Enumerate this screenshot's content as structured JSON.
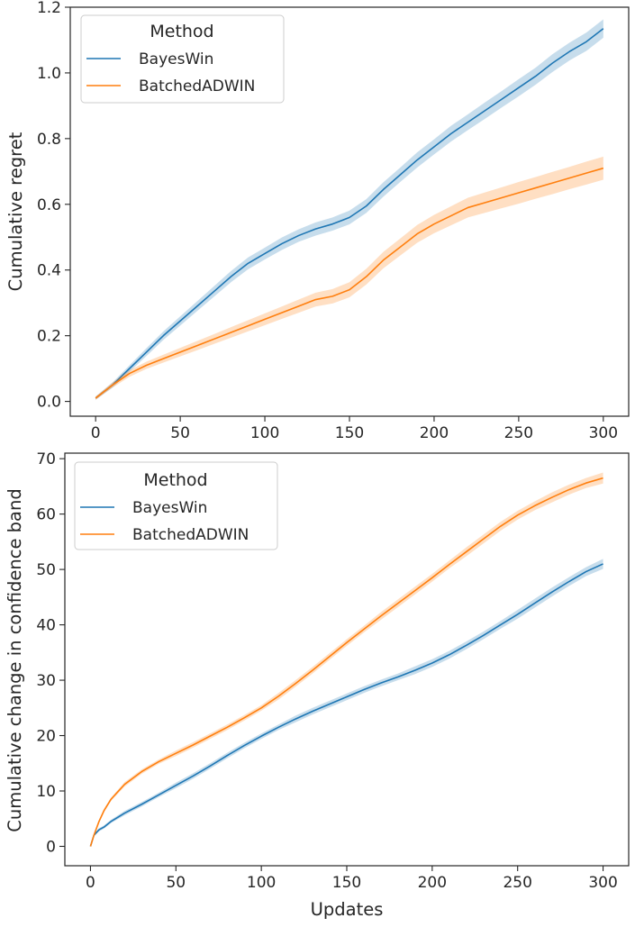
{
  "chart_data": [
    {
      "type": "line",
      "title": "",
      "xlabel": "",
      "ylabel": "Cumulative regret",
      "xlim": [
        -15,
        315
      ],
      "ylim": [
        -0.045,
        1.2
      ],
      "xticks": [
        0,
        50,
        100,
        150,
        200,
        250,
        300
      ],
      "xtick_labels": [
        "0",
        "50",
        "100",
        "150",
        "200",
        "250",
        "300"
      ],
      "yticks": [
        0.0,
        0.2,
        0.4,
        0.6,
        0.8,
        1.0,
        1.2
      ],
      "ytick_labels": [
        "0.0",
        "0.2",
        "0.4",
        "0.6",
        "0.8",
        "1.0",
        "1.2"
      ],
      "grid": false,
      "legend": {
        "title": "Method",
        "position": "top-left"
      },
      "series": [
        {
          "name": "BayesWin",
          "color": "#1f77b4",
          "x": [
            0,
            10,
            20,
            30,
            40,
            50,
            60,
            70,
            80,
            90,
            100,
            110,
            120,
            130,
            140,
            150,
            160,
            170,
            180,
            190,
            200,
            210,
            220,
            230,
            240,
            250,
            260,
            270,
            280,
            290,
            300
          ],
          "y": [
            0.01,
            0.05,
            0.1,
            0.15,
            0.2,
            0.245,
            0.29,
            0.335,
            0.38,
            0.42,
            0.45,
            0.48,
            0.505,
            0.525,
            0.54,
            0.56,
            0.595,
            0.645,
            0.69,
            0.735,
            0.775,
            0.815,
            0.85,
            0.885,
            0.92,
            0.955,
            0.99,
            1.03,
            1.065,
            1.095,
            1.135
          ],
          "band": [
            0.005,
            0.008,
            0.01,
            0.012,
            0.013,
            0.014,
            0.015,
            0.016,
            0.017,
            0.018,
            0.018,
            0.019,
            0.019,
            0.02,
            0.02,
            0.021,
            0.021,
            0.022,
            0.022,
            0.023,
            0.023,
            0.024,
            0.024,
            0.025,
            0.025,
            0.026,
            0.026,
            0.027,
            0.027,
            0.028,
            0.028
          ]
        },
        {
          "name": "BatchedADWIN",
          "color": "#ff7f0e",
          "x": [
            0,
            10,
            20,
            30,
            40,
            50,
            60,
            70,
            80,
            90,
            100,
            110,
            120,
            130,
            140,
            150,
            160,
            170,
            180,
            190,
            200,
            210,
            220,
            230,
            240,
            250,
            260,
            270,
            280,
            290,
            300
          ],
          "y": [
            0.01,
            0.05,
            0.085,
            0.11,
            0.13,
            0.15,
            0.17,
            0.19,
            0.21,
            0.23,
            0.25,
            0.27,
            0.29,
            0.31,
            0.32,
            0.34,
            0.38,
            0.43,
            0.47,
            0.51,
            0.54,
            0.565,
            0.59,
            0.605,
            0.62,
            0.635,
            0.65,
            0.665,
            0.68,
            0.695,
            0.71
          ],
          "band": [
            0.005,
            0.008,
            0.01,
            0.011,
            0.012,
            0.013,
            0.014,
            0.015,
            0.016,
            0.017,
            0.018,
            0.019,
            0.02,
            0.021,
            0.022,
            0.023,
            0.024,
            0.025,
            0.026,
            0.027,
            0.028,
            0.029,
            0.03,
            0.031,
            0.032,
            0.033,
            0.033,
            0.034,
            0.034,
            0.035,
            0.035
          ]
        }
      ]
    },
    {
      "type": "line",
      "title": "",
      "xlabel": "Updates",
      "ylabel": "Cumulative change in confidence band",
      "xlim": [
        -15,
        315
      ],
      "ylim": [
        -3.5,
        71
      ],
      "xticks": [
        0,
        50,
        100,
        150,
        200,
        250,
        300
      ],
      "xtick_labels": [
        "0",
        "50",
        "100",
        "150",
        "200",
        "250",
        "300"
      ],
      "yticks": [
        0,
        10,
        20,
        30,
        40,
        50,
        60,
        70
      ],
      "ytick_labels": [
        "0",
        "10",
        "20",
        "30",
        "40",
        "50",
        "60",
        "70"
      ],
      "grid": false,
      "legend": {
        "title": "Method",
        "position": "top-left"
      },
      "series": [
        {
          "name": "BayesWin",
          "color": "#1f77b4",
          "x": [
            0,
            2,
            5,
            8,
            12,
            20,
            30,
            40,
            50,
            60,
            70,
            80,
            90,
            100,
            110,
            120,
            130,
            140,
            150,
            160,
            170,
            180,
            190,
            200,
            210,
            220,
            230,
            240,
            250,
            260,
            270,
            280,
            290,
            300
          ],
          "y": [
            0,
            2,
            3,
            3.5,
            4.5,
            6,
            7.6,
            9.3,
            11,
            12.7,
            14.5,
            16.4,
            18.2,
            19.9,
            21.5,
            23,
            24.4,
            25.7,
            27,
            28.3,
            29.5,
            30.6,
            31.8,
            33.1,
            34.6,
            36.3,
            38.1,
            40,
            41.9,
            43.9,
            45.9,
            47.8,
            49.6,
            51
          ],
          "band": [
            0,
            0.2,
            0.3,
            0.3,
            0.3,
            0.4,
            0.4,
            0.4,
            0.5,
            0.5,
            0.5,
            0.5,
            0.5,
            0.5,
            0.5,
            0.6,
            0.6,
            0.6,
            0.6,
            0.6,
            0.6,
            0.6,
            0.7,
            0.7,
            0.7,
            0.7,
            0.7,
            0.7,
            0.8,
            0.8,
            0.8,
            0.8,
            0.8,
            0.9
          ]
        },
        {
          "name": "BatchedADWIN",
          "color": "#ff7f0e",
          "x": [
            0,
            2,
            5,
            8,
            12,
            20,
            30,
            40,
            50,
            60,
            70,
            80,
            90,
            100,
            110,
            120,
            130,
            140,
            150,
            160,
            170,
            180,
            190,
            200,
            210,
            220,
            230,
            240,
            250,
            260,
            270,
            280,
            290,
            300
          ],
          "y": [
            0,
            2,
            4.5,
            6.5,
            8.5,
            11.2,
            13.5,
            15.3,
            16.8,
            18.3,
            19.9,
            21.5,
            23.2,
            25,
            27.1,
            29.4,
            31.8,
            34.3,
            36.8,
            39.2,
            41.6,
            43.9,
            46.2,
            48.5,
            50.9,
            53.2,
            55.5,
            57.8,
            59.8,
            61.5,
            63,
            64.4,
            65.6,
            66.5
          ],
          "band": [
            0,
            0.2,
            0.3,
            0.3,
            0.3,
            0.4,
            0.4,
            0.4,
            0.5,
            0.5,
            0.5,
            0.5,
            0.5,
            0.5,
            0.6,
            0.6,
            0.6,
            0.6,
            0.6,
            0.6,
            0.7,
            0.7,
            0.7,
            0.7,
            0.7,
            0.8,
            0.8,
            0.8,
            0.8,
            0.8,
            0.9,
            0.9,
            0.9,
            1.0
          ]
        }
      ]
    }
  ]
}
